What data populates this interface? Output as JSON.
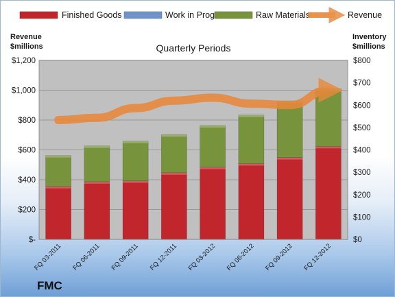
{
  "chart_data": {
    "type": "bar",
    "title": "Quarterly Periods",
    "categories": [
      "FQ 03-2011",
      "FQ 06-2011",
      "FQ 09-2011",
      "FQ 12-2011",
      "FQ 03-2012",
      "FQ 06-2012",
      "FQ 09-2012",
      "FQ 12-2012"
    ],
    "stacked": true,
    "series": [
      {
        "name": "Finished Goods",
        "axis": "right",
        "values": [
          237,
          258,
          262,
          298,
          323,
          339,
          366,
          416
        ],
        "color": "#c0262c"
      },
      {
        "name": "Work in Progress",
        "axis": "right",
        "values": [
          0,
          0,
          0,
          0,
          0,
          0,
          0,
          0
        ],
        "color": "#6f93c9"
      },
      {
        "name": "Raw Materials",
        "axis": "right",
        "values": [
          138,
          160,
          177,
          170,
          186,
          217,
          253,
          257
        ],
        "color": "#77933c"
      },
      {
        "name": "Revenue",
        "axis": "left",
        "type": "line",
        "values": [
          800,
          815,
          880,
          930,
          950,
          910,
          900,
          1000
        ],
        "color": "#e8883a"
      }
    ],
    "left_axis": {
      "label_line1": "Revenue",
      "label_line2": "$millions",
      "ylim": [
        0,
        1200
      ],
      "ticks": [
        0,
        200,
        400,
        600,
        800,
        1000,
        1200
      ],
      "tick_labels": [
        "$-",
        "$200",
        "$400",
        "$600",
        "$800",
        "$1,000",
        "$1,200"
      ]
    },
    "right_axis": {
      "label_line1": "Inventory",
      "label_line2": "$millions",
      "ylim": [
        0,
        800
      ],
      "ticks": [
        0,
        100,
        200,
        300,
        400,
        500,
        600,
        700,
        800
      ],
      "tick_labels": [
        "$0",
        "$100",
        "$200",
        "$300",
        "$400",
        "$500",
        "$600",
        "$700",
        "$800"
      ]
    },
    "grid": true,
    "legend_position": "top"
  },
  "company": "FMC",
  "colors": {
    "plot_bg": "#c0c0c0",
    "grid": "#8c8c8c"
  }
}
